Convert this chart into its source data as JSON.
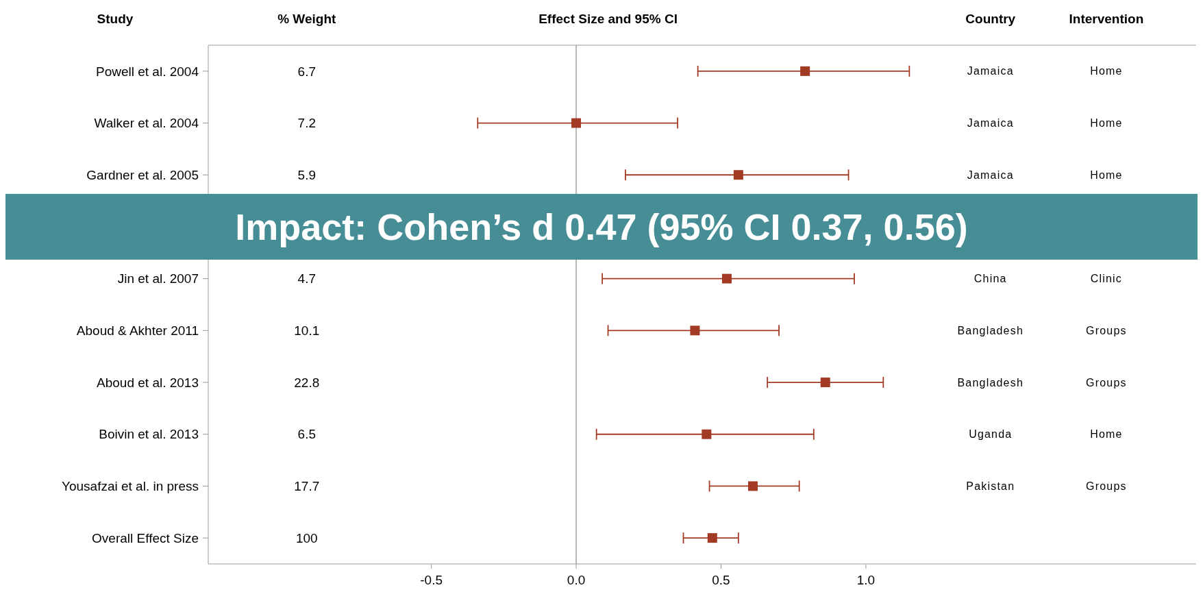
{
  "chart_data": {
    "type": "scatter",
    "title": "Effect Size and 95% CI",
    "ylabel": "Study",
    "categories": [
      "Powell et al. 2004",
      "Walker et al. 2004",
      "Gardner et al. 2005",
      null,
      "Jin et al. 2007",
      "Aboud & Akhter 2011",
      "Aboud et al. 2013",
      "Boivin et al. 2013",
      "Yousafzai et al. in press",
      "Overall Effect Size"
    ],
    "values": [
      0.79,
      0.0,
      0.56,
      null,
      0.52,
      0.41,
      0.86,
      0.45,
      0.61,
      0.47
    ],
    "errors": [
      [
        0.42,
        1.15
      ],
      [
        -0.34,
        0.35
      ],
      [
        0.17,
        0.94
      ],
      null,
      [
        0.09,
        0.96
      ],
      [
        0.11,
        0.7
      ],
      [
        0.66,
        1.06
      ],
      [
        0.07,
        0.82
      ],
      [
        0.46,
        0.77
      ],
      [
        0.37,
        0.56
      ]
    ],
    "color": "#a33a24",
    "marker": "square",
    "orientation": "horizontal",
    "legend": false,
    "xlim": [
      -1.27,
      2.14
    ],
    "xticks": [
      {
        "value": -0.5,
        "label": "-0.5"
      },
      {
        "value": 0,
        "label": "0.0"
      },
      {
        "value": 0.5,
        "label": "0.5"
      },
      {
        "value": 1,
        "label": "1.0"
      }
    ],
    "ref_lines": [
      {
        "axis": "x",
        "value": 0,
        "color": "#a0a0a0"
      }
    ],
    "annotations": [
      "% Weight",
      "Country",
      "Intervention",
      "6.7",
      "7.2",
      "5.9",
      "4.7",
      "10.1",
      "22.8",
      "6.5",
      "17.7",
      "100",
      "Jamaica",
      "Jamaica",
      "Jamaica",
      "China",
      "Bangladesh",
      "Bangladesh",
      "Uganda",
      "Pakistan",
      "Home",
      "Home",
      "Home",
      "Clinic",
      "Groups",
      "Groups",
      "Home",
      "Groups",
      "Impact: Cohen’s d 0.47 (95% CI 0.37, 0.56)"
    ]
  }
}
